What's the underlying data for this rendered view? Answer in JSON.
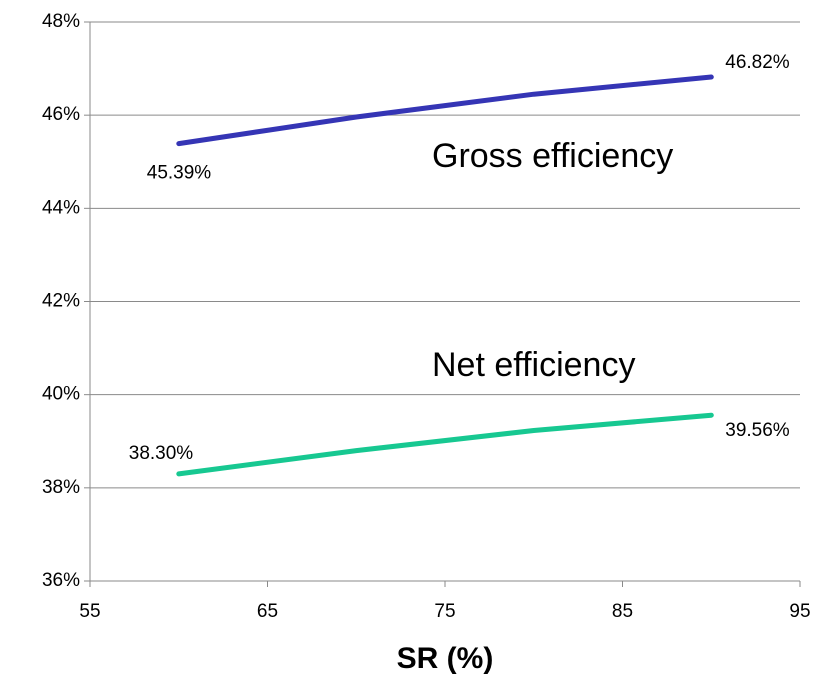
{
  "chart_data": {
    "type": "line",
    "x_label": "SR (%)",
    "x": [
      60,
      70,
      80,
      90
    ],
    "series": [
      {
        "name": "Gross efficiency",
        "color": "#3535b5",
        "values": [
          45.39,
          45.96,
          46.45,
          46.82
        ],
        "value_labels": [
          "45.39%",
          null,
          null,
          "46.82%"
        ]
      },
      {
        "name": "Net efficiency",
        "color": "#17c891",
        "values": [
          38.3,
          38.8,
          39.23,
          39.56
        ],
        "value_labels": [
          "38.30%",
          null,
          null,
          "39.56%"
        ]
      }
    ],
    "xlim": [
      55,
      95
    ],
    "xticks": [
      55,
      65,
      75,
      85,
      95
    ],
    "ylim": [
      36,
      48
    ],
    "yticks": [
      {
        "value": 36,
        "label": "36%"
      },
      {
        "value": 38,
        "label": "38%"
      },
      {
        "value": 40,
        "label": "40%"
      },
      {
        "value": 42,
        "label": "42%"
      },
      {
        "value": 44,
        "label": "44%"
      },
      {
        "value": 46,
        "label": "46%"
      },
      {
        "value": 48,
        "label": "48%"
      }
    ],
    "grid": true
  }
}
